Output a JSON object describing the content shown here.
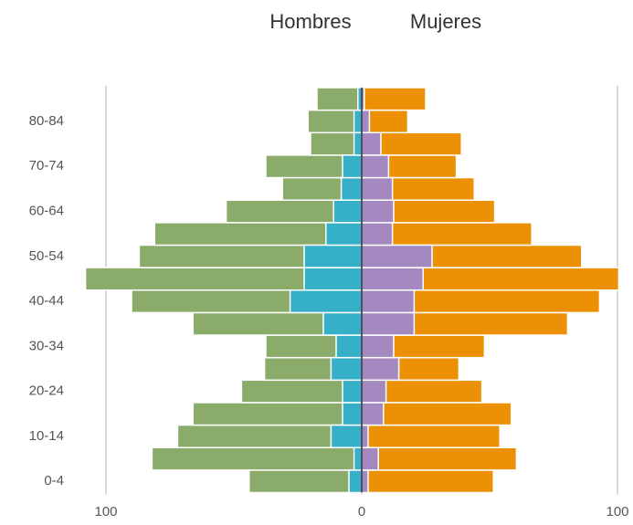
{
  "chart_data": {
    "type": "pyramid",
    "categories": [
      "0-4",
      null,
      "10-14",
      null,
      "20-24",
      null,
      "30-34",
      null,
      "40-44",
      null,
      "50-54",
      null,
      "60-64",
      null,
      "70-74",
      null,
      "80-84",
      null
    ],
    "series": [
      {
        "name": "Hombres",
        "color": "#8aab6a",
        "inner_color": "#36b0c9",
        "values": [
          -44,
          -82,
          -72,
          -66,
          -47,
          -38,
          -37.5,
          -66,
          -90,
          -108,
          -87,
          -81,
          -53,
          -31,
          -37.5,
          -20,
          -21,
          -17.5
        ],
        "inner_values": [
          -5,
          -3,
          -12,
          -7.5,
          -7.5,
          -12,
          -10,
          -15,
          -28,
          -22.5,
          -22.5,
          -14,
          -11,
          -8,
          -7.5,
          -3,
          -3,
          -1.5
        ]
      },
      {
        "name": "Mujeres",
        "color": "#ec9106",
        "inner_color": "#a488c0",
        "values": [
          51.5,
          60.5,
          54,
          58.5,
          47,
          38,
          48,
          80.5,
          93,
          100.5,
          86,
          66.5,
          52,
          44,
          37,
          39,
          18,
          25
        ],
        "inner_values": [
          2.5,
          6.5,
          2.5,
          8.5,
          9.5,
          14.5,
          12.5,
          20.5,
          20.5,
          24,
          27.5,
          12,
          12.5,
          12,
          10.5,
          7.5,
          3,
          1
        ]
      }
    ],
    "xlim": [
      -110,
      102
    ],
    "xticks": [
      {
        "value": -100,
        "label": "100"
      },
      0,
      100
    ],
    "grid": true
  }
}
